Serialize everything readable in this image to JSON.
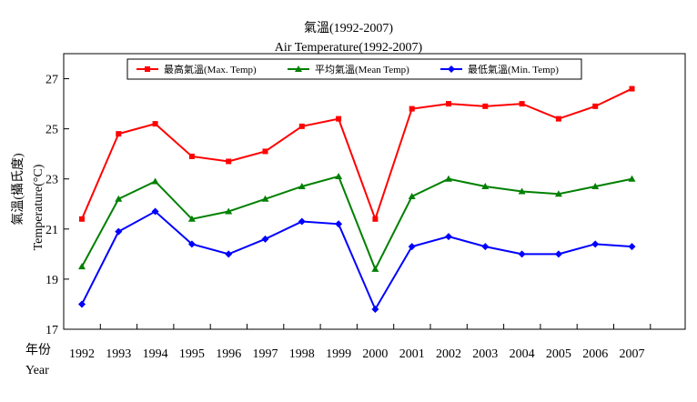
{
  "chart_data": {
    "type": "line",
    "title": "氣溫(1992-2007)",
    "subtitle": "Air Temperature(1992-2007)",
    "xlabel_zh": "年份",
    "xlabel_en": "Year",
    "ylabel_zh": "氣溫(攝氏度)",
    "ylabel_en": "Temperature(°C)",
    "ylim": [
      17,
      28
    ],
    "yticks": [
      17,
      19,
      21,
      23,
      25,
      27
    ],
    "categories": [
      "1992",
      "1993",
      "1994",
      "1995",
      "1996",
      "1997",
      "1998",
      "1999",
      "2000",
      "2001",
      "2002",
      "2003",
      "2004",
      "2005",
      "2006",
      "2007"
    ],
    "legend_position": "top",
    "series": [
      {
        "name": "最高氣溫(Max. Temp)",
        "color": "#ff0000",
        "marker": "square",
        "values": [
          21.4,
          24.8,
          25.2,
          23.9,
          23.7,
          24.1,
          25.1,
          25.4,
          21.4,
          25.8,
          26.0,
          25.9,
          26.0,
          25.4,
          25.9,
          26.6
        ]
      },
      {
        "name": "平均氣溫(Mean Temp)",
        "color": "#008000",
        "marker": "triangle",
        "values": [
          19.5,
          22.2,
          22.9,
          21.4,
          21.7,
          22.2,
          22.7,
          23.1,
          19.4,
          22.3,
          23.0,
          22.7,
          22.5,
          22.4,
          22.7,
          23.0
        ]
      },
      {
        "name": "最低氣溫(Min. Temp)",
        "color": "#0000ff",
        "marker": "diamond",
        "values": [
          18.0,
          20.9,
          21.7,
          20.4,
          20.0,
          20.6,
          21.3,
          21.2,
          17.8,
          20.3,
          20.7,
          20.3,
          20.0,
          20.0,
          20.4,
          20.3
        ]
      }
    ]
  }
}
